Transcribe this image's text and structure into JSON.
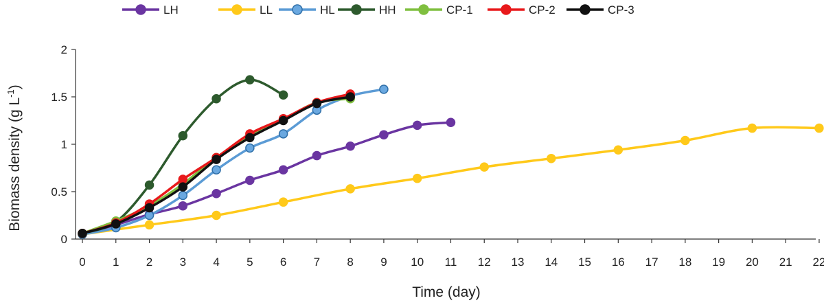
{
  "chart_data": {
    "type": "line",
    "title": "",
    "xlabel": "Time (day)",
    "ylabel": {
      "main": "Biomass density (g L",
      "sup": "-1",
      "close": ")"
    },
    "xlim": [
      0,
      22
    ],
    "ylim": [
      0,
      2
    ],
    "xticks": [
      "0",
      "1",
      "2",
      "3",
      "4",
      "5",
      "6",
      "7",
      "8",
      "9",
      "10",
      "11",
      "12",
      "13",
      "14",
      "15",
      "16",
      "17",
      "18",
      "19",
      "20",
      "21",
      "22"
    ],
    "yticks": [
      "0",
      "0.5",
      "1",
      "1.5",
      "2"
    ],
    "grid": false,
    "legend_position": "top",
    "series": [
      {
        "name": "LH",
        "color": "#6a35a1",
        "fill": "#6a35a1",
        "x": [
          0,
          1,
          2,
          3,
          4,
          5,
          6,
          7,
          8,
          9,
          10,
          11
        ],
        "y": [
          0.05,
          0.15,
          0.26,
          0.35,
          0.48,
          0.62,
          0.73,
          0.88,
          0.98,
          1.1,
          1.2,
          1.23
        ]
      },
      {
        "name": "LL",
        "color": "#ffc91a",
        "fill": "#ffc91a",
        "x": [
          0,
          2,
          4,
          6,
          8,
          10,
          12,
          14,
          16,
          18,
          20,
          22
        ],
        "y": [
          0.05,
          0.15,
          0.25,
          0.39,
          0.53,
          0.64,
          0.76,
          0.85,
          0.94,
          1.04,
          1.17,
          1.17
        ]
      },
      {
        "name": "HL",
        "color": "#5b9bd5",
        "fill": "#6aa8e0",
        "x": [
          0,
          1,
          2,
          3,
          4,
          5,
          6,
          7,
          8,
          9
        ],
        "y": [
          0.05,
          0.12,
          0.25,
          0.46,
          0.73,
          0.96,
          1.11,
          1.36,
          1.51,
          1.58
        ]
      },
      {
        "name": "HH",
        "color": "#2d5a2d",
        "fill": "#2d5a2d",
        "x": [
          0,
          1,
          2,
          3,
          4,
          5,
          6
        ],
        "y": [
          0.06,
          0.18,
          0.57,
          1.09,
          1.48,
          1.68,
          1.52
        ]
      },
      {
        "name": "CP-1",
        "color": "#7fbf3f",
        "fill": "#7fbf3f",
        "x": [
          0,
          1,
          2,
          3,
          4,
          5,
          6,
          7,
          8
        ],
        "y": [
          0.06,
          0.19,
          0.35,
          0.58,
          0.86,
          1.09,
          1.26,
          1.44,
          1.48
        ]
      },
      {
        "name": "CP-2",
        "color": "#e8191b",
        "fill": "#e8191b",
        "x": [
          0,
          1,
          2,
          3,
          4,
          5,
          6,
          7,
          8
        ],
        "y": [
          0.06,
          0.17,
          0.37,
          0.63,
          0.86,
          1.11,
          1.27,
          1.44,
          1.53
        ]
      },
      {
        "name": "CP-3",
        "color": "#111111",
        "fill": "#111111",
        "x": [
          0,
          1,
          2,
          3,
          4,
          5,
          6,
          7,
          8
        ],
        "y": [
          0.06,
          0.16,
          0.33,
          0.55,
          0.84,
          1.07,
          1.25,
          1.43,
          1.5
        ]
      }
    ]
  }
}
